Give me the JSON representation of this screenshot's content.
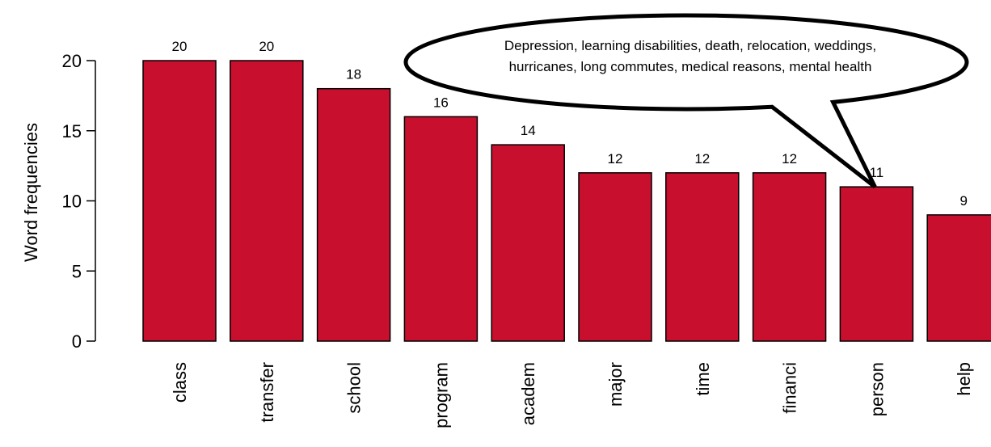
{
  "chart_data": {
    "type": "bar",
    "categories": [
      "class",
      "transfer",
      "school",
      "program",
      "academ",
      "major",
      "time",
      "financi",
      "person",
      "help"
    ],
    "values": [
      20,
      20,
      18,
      16,
      14,
      12,
      12,
      12,
      11,
      9
    ],
    "data_labels": [
      "20",
      "20",
      "18",
      "16",
      "14",
      "12",
      "12",
      "12",
      "11",
      "9"
    ],
    "title": "",
    "xlabel": "",
    "ylabel": "Word frequencies",
    "ylim": [
      0,
      20
    ],
    "yticks": [
      0,
      5,
      10,
      15,
      20
    ],
    "ytick_labels": [
      "0",
      "5",
      "10",
      "15",
      "20"
    ],
    "grid": false,
    "legend": "none",
    "bar_color": "#c8102e",
    "callout": {
      "target_category": "person",
      "lines": [
        "Depression, learning disabilities, death, relocation, weddings,",
        "hurricanes, long commutes, medical reasons, mental health"
      ]
    }
  }
}
